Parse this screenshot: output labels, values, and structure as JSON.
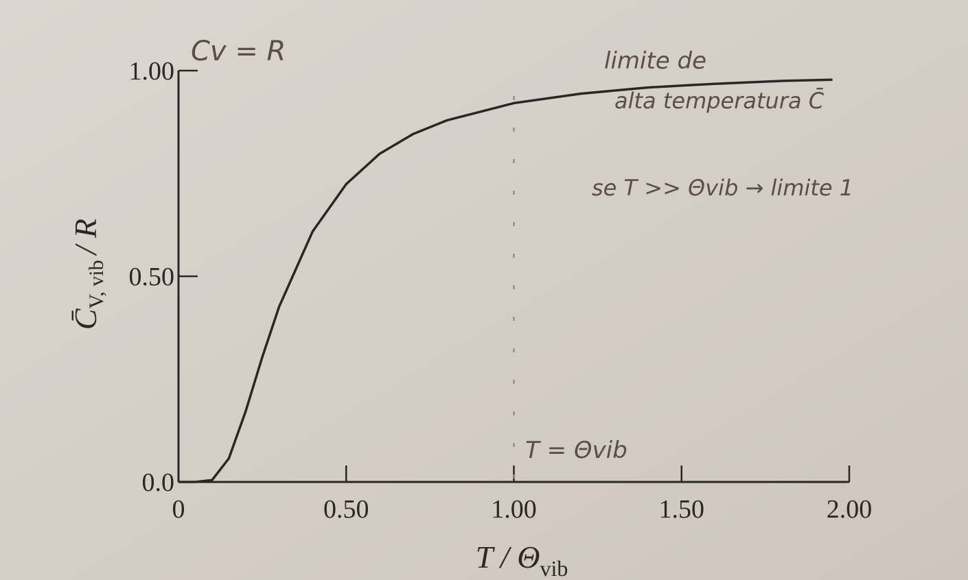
{
  "chart_data": {
    "type": "line",
    "xlabel": {
      "main": "T / Θ",
      "sub": "vib"
    },
    "ylabel": {
      "main": "C̄",
      "sub": "V, vib",
      "rest": "/ R"
    },
    "x": [
      0,
      0.05,
      0.1,
      0.15,
      0.2,
      0.25,
      0.3,
      0.4,
      0.5,
      0.6,
      0.7,
      0.8,
      1.0,
      1.2,
      1.4,
      1.6,
      1.8,
      1.95
    ],
    "series": [
      {
        "color": "#2a2624",
        "values": [
          0,
          0.0,
          0.0045,
          0.057,
          0.171,
          0.304,
          0.426,
          0.609,
          0.724,
          0.798,
          0.846,
          0.879,
          0.921,
          0.944,
          0.959,
          0.968,
          0.975,
          0.978
        ]
      }
    ],
    "xlim": [
      0,
      2
    ],
    "ylim": [
      0,
      1
    ],
    "xticks": [
      0,
      {
        "value": 0.5,
        "label": "0.50"
      },
      {
        "value": 1,
        "label": "1.00"
      },
      {
        "value": 1.5,
        "label": "1.50"
      },
      {
        "value": 2,
        "label": "2.00"
      }
    ],
    "yticks": [
      {
        "value": 0,
        "label": "0.0"
      },
      {
        "value": 0.5,
        "label": "0.50"
      },
      {
        "value": 1,
        "label": "1.00"
      }
    ],
    "grid": false,
    "annotations": {
      "top_left": "Cv = R",
      "limit_line1": "limite de",
      "limit_line2": "alta temperatura C̄",
      "condition": "se T >> Θvib → limite 1",
      "vline_label": "T = Θvib",
      "vline_x": 1
    }
  }
}
